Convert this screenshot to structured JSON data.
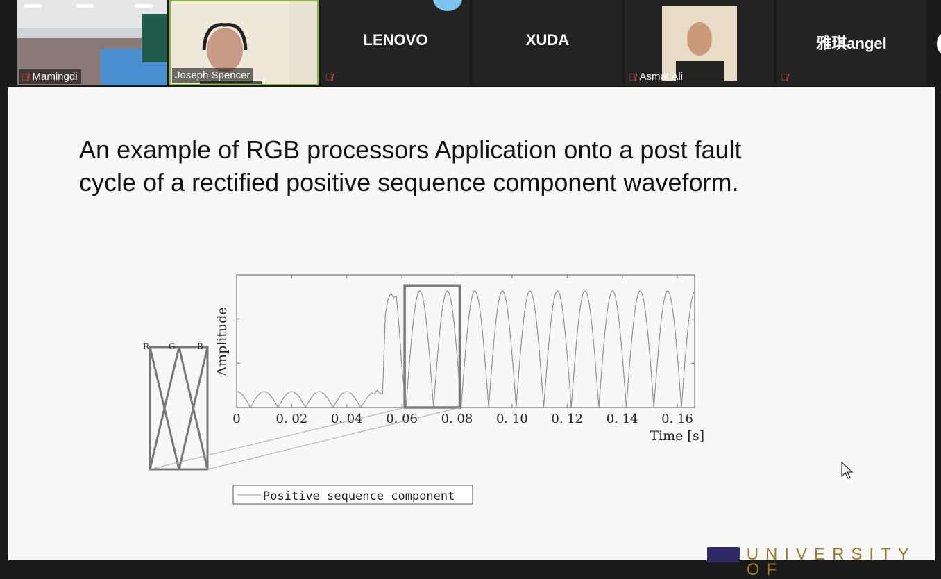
{
  "participants": [
    {
      "name": "Mamingdi",
      "muted": true,
      "video": true
    },
    {
      "name": "Joseph Spencer",
      "muted": false,
      "video": true,
      "active_speaker": true
    },
    {
      "name": "LENOVO",
      "muted": true,
      "video": false
    },
    {
      "name": "XUDA",
      "muted": false,
      "video": false
    },
    {
      "name": "Asmat Ali",
      "muted": true,
      "video": true
    },
    {
      "name": "雅琪angel",
      "muted": true,
      "video": false
    }
  ],
  "colors": {
    "active_speaker_border": "#8db53c",
    "muted_icon": "#e0443a",
    "tile_bg": "#232323",
    "slide_bg": "#f8f8f7"
  },
  "slide": {
    "title_line1": "An example of RGB processors Application onto a post fault",
    "title_line2": "cycle of a rectified positive sequence component waveform.",
    "logo_text": "UNIVERSITY OF"
  },
  "chart_data": {
    "type": "line",
    "xlabel": "Time [s]",
    "ylabel": "Amplitude",
    "xlim": [
      0,
      0.1663
    ],
    "ylim": [
      0,
      1
    ],
    "xticks": [
      0,
      0.02,
      0.04,
      0.06,
      0.08,
      0.1,
      0.12,
      0.14,
      0.16
    ],
    "xtick_labels": [
      "0",
      "0. 02",
      "0. 04",
      "0. 06",
      "0. 08",
      "0. 10",
      "0. 12",
      "0. 14",
      "0. 16"
    ],
    "yticks": [
      0.333,
      0.667
    ],
    "grid": false,
    "legend": {
      "entries": [
        "Positive sequence component"
      ],
      "placement": "bottom"
    },
    "series": [
      {
        "name": "Positive sequence component",
        "color": "#888888",
        "pre_fault": {
          "zeros": [
            0.005,
            0.015,
            0.025,
            0.035,
            0.045
          ],
          "peak": 0.12
        },
        "fault_transient": {
          "x": [
            0.045,
            0.047,
            0.048,
            0.049,
            0.05,
            0.051,
            0.052,
            0.053,
            0.0535,
            0.054,
            0.055,
            0.056,
            0.057,
            0.058,
            0.059,
            0.06,
            0.0615
          ],
          "y": [
            0,
            0.06,
            0.09,
            0.11,
            0.1,
            0.13,
            0.11,
            0.1,
            0.4,
            0.7,
            0.82,
            0.86,
            0.83,
            0.84,
            0.6,
            0.3,
            0
          ]
        },
        "post_fault": {
          "zeros": [
            0.0615,
            0.0715,
            0.0815,
            0.0915,
            0.1015,
            0.1115,
            0.1215,
            0.1315,
            0.1415,
            0.1515,
            0.1615,
            0.1715
          ],
          "peak": 0.88
        }
      }
    ],
    "highlight_window": {
      "x": [
        0.061,
        0.081
      ],
      "y": [
        0,
        0.92
      ]
    },
    "rgb_window": {
      "labels": [
        "R",
        "G",
        "B"
      ]
    }
  }
}
